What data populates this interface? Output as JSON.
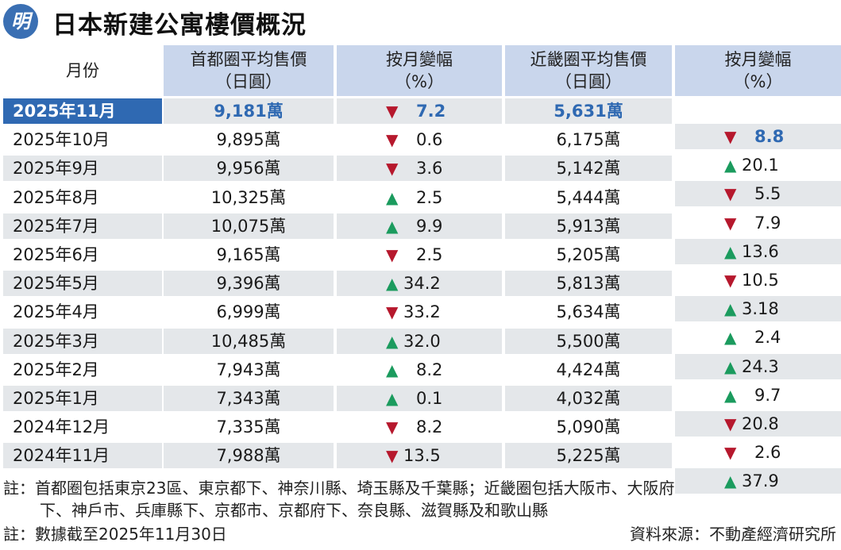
{
  "title": "日本新建公寓樓價概況",
  "logo_text": "明",
  "headers": {
    "month": "月份",
    "tokyo_l1": "首都圈平均售價",
    "tokyo_l2": "（日圓）",
    "tchg_l1": "按月變幅",
    "tchg_l2": "（%）",
    "kinki_l1": "近畿圈平均售價",
    "kinki_l2": "（日圓）",
    "kchg_l1": "按月變幅",
    "kchg_l2": "（%）"
  },
  "colors": {
    "up": "#1b9b5e",
    "down": "#b6182d",
    "highlight": "#2f69b2",
    "header_bg": "#c9d6ec"
  },
  "chart_data": {
    "type": "table",
    "columns": [
      "月份",
      "首都圈平均售價（日圓）",
      "按月變幅（%）",
      "近畿圈平均售價（日圓）",
      "按月變幅（%）"
    ],
    "rows": [
      {
        "month": "2025年11月",
        "tokyo": "9,181萬",
        "tokyo_dir": "down",
        "tokyo_chg": "7.2",
        "kinki": "5,631萬",
        "kinki_dir": "down",
        "kinki_chg": "8.8"
      },
      {
        "month": "2025年10月",
        "tokyo": "9,895萬",
        "tokyo_dir": "down",
        "tokyo_chg": "0.6",
        "kinki": "6,175萬",
        "kinki_dir": "up",
        "kinki_chg": "20.1"
      },
      {
        "month": "2025年9月",
        "tokyo": "9,956萬",
        "tokyo_dir": "down",
        "tokyo_chg": "3.6",
        "kinki": "5,142萬",
        "kinki_dir": "down",
        "kinki_chg": "5.5"
      },
      {
        "month": "2025年8月",
        "tokyo": "10,325萬",
        "tokyo_dir": "up",
        "tokyo_chg": "2.5",
        "kinki": "5,444萬",
        "kinki_dir": "down",
        "kinki_chg": "7.9"
      },
      {
        "month": "2025年7月",
        "tokyo": "10,075萬",
        "tokyo_dir": "up",
        "tokyo_chg": "9.9",
        "kinki": "5,913萬",
        "kinki_dir": "up",
        "kinki_chg": "13.6"
      },
      {
        "month": "2025年6月",
        "tokyo": "9,165萬",
        "tokyo_dir": "down",
        "tokyo_chg": "2.5",
        "kinki": "5,205萬",
        "kinki_dir": "down",
        "kinki_chg": "10.5"
      },
      {
        "month": "2025年5月",
        "tokyo": "9,396萬",
        "tokyo_dir": "up",
        "tokyo_chg": "34.2",
        "kinki": "5,813萬",
        "kinki_dir": "up",
        "kinki_chg": "3.18"
      },
      {
        "month": "2025年4月",
        "tokyo": "6,999萬",
        "tokyo_dir": "down",
        "tokyo_chg": "33.2",
        "kinki": "5,634萬",
        "kinki_dir": "up",
        "kinki_chg": "2.4"
      },
      {
        "month": "2025年3月",
        "tokyo": "10,485萬",
        "tokyo_dir": "up",
        "tokyo_chg": "32.0",
        "kinki": "5,500萬",
        "kinki_dir": "up",
        "kinki_chg": "24.3"
      },
      {
        "month": "2025年2月",
        "tokyo": "7,943萬",
        "tokyo_dir": "up",
        "tokyo_chg": "8.2",
        "kinki": "4,424萬",
        "kinki_dir": "up",
        "kinki_chg": "9.7"
      },
      {
        "month": "2025年1月",
        "tokyo": "7,343萬",
        "tokyo_dir": "up",
        "tokyo_chg": "0.1",
        "kinki": "4,032萬",
        "kinki_dir": "down",
        "kinki_chg": "20.8"
      },
      {
        "month": "2024年12月",
        "tokyo": "7,335萬",
        "tokyo_dir": "down",
        "tokyo_chg": "8.2",
        "kinki": "5,090萬",
        "kinki_dir": "down",
        "kinki_chg": "2.6"
      },
      {
        "month": "2024年11月",
        "tokyo": "7,988萬",
        "tokyo_dir": "down",
        "tokyo_chg": "13.5",
        "kinki": "5,225萬",
        "kinki_dir": "up",
        "kinki_chg": "37.9"
      }
    ]
  },
  "notes": {
    "note1_l1": "註：首都圈包括東京23區、東京都下、神奈川縣、埼玉縣及千葉縣；近畿圈包括大阪市、大阪府",
    "note1_l2": "下、神戶市、兵庫縣下、京都市、京都府下、奈良縣、滋賀縣及和歌山縣",
    "note2": "註：數據截至2025年11月30日",
    "source": "資料來源：不動產經濟研究所"
  }
}
